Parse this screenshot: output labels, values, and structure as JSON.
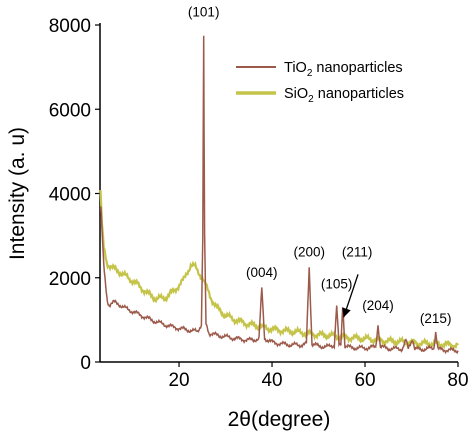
{
  "chart_data": {
    "type": "line",
    "xlabel_main": "2θ(degree)",
    "ylabel": "Intensity (a. u)",
    "xlim": [
      3,
      80
    ],
    "ylim": [
      0,
      8000
    ],
    "x_ticks": [
      20,
      40,
      60,
      80
    ],
    "y_ticks": [
      0,
      2000,
      4000,
      6000,
      8000
    ],
    "x_tick_labels": [
      "20",
      "40",
      "60",
      "80"
    ],
    "y_tick_labels": [
      "0",
      "2000",
      "4000",
      "6000",
      "8000"
    ],
    "grid": false,
    "legend_position": "top-right",
    "series": [
      {
        "name_main": "TiO",
        "name_sub": "2",
        "name_rest": " nanoparticles",
        "color": "#9c5a4b",
        "points": [
          [
            3.2,
            3700
          ],
          [
            3.5,
            3000
          ],
          [
            3.8,
            2300
          ],
          [
            4.2,
            1800
          ],
          [
            4.6,
            1450
          ],
          [
            5,
            1350
          ],
          [
            6,
            1420
          ],
          [
            7,
            1380
          ],
          [
            8,
            1300
          ],
          [
            10,
            1200
          ],
          [
            12,
            1100
          ],
          [
            14,
            1000
          ],
          [
            16,
            920
          ],
          [
            18,
            850
          ],
          [
            20,
            800
          ],
          [
            22,
            760
          ],
          [
            24,
            720
          ],
          [
            24.8,
            900
          ],
          [
            25.1,
            3000
          ],
          [
            25.3,
            7700
          ],
          [
            25.5,
            3000
          ],
          [
            25.8,
            900
          ],
          [
            26.5,
            680
          ],
          [
            28,
            640
          ],
          [
            30,
            600
          ],
          [
            32,
            560
          ],
          [
            34,
            530
          ],
          [
            36,
            520
          ],
          [
            37.2,
            560
          ],
          [
            37.8,
            1750
          ],
          [
            38.4,
            560
          ],
          [
            40,
            470
          ],
          [
            42,
            430
          ],
          [
            44,
            410
          ],
          [
            46,
            400
          ],
          [
            47.4,
            430
          ],
          [
            48.0,
            2250
          ],
          [
            48.6,
            430
          ],
          [
            50,
            380
          ],
          [
            52,
            360
          ],
          [
            53.4,
            400
          ],
          [
            53.9,
            1350
          ],
          [
            54.4,
            400
          ],
          [
            54.8,
            400
          ],
          [
            55.2,
            1350
          ],
          [
            55.7,
            380
          ],
          [
            57,
            340
          ],
          [
            60,
            330
          ],
          [
            62.3,
            360
          ],
          [
            62.8,
            900
          ],
          [
            63.3,
            360
          ],
          [
            65,
            320
          ],
          [
            68,
            310
          ],
          [
            68.8,
            520
          ],
          [
            69.3,
            310
          ],
          [
            70.2,
            560
          ],
          [
            70.7,
            310
          ],
          [
            72,
            300
          ],
          [
            74.8,
            330
          ],
          [
            75.2,
            720
          ],
          [
            75.7,
            300
          ],
          [
            78,
            280
          ],
          [
            80,
            270
          ]
        ]
      },
      {
        "name_main": "SiO",
        "name_sub": "2",
        "name_rest": " nanoparticles",
        "color": "#c5c44a",
        "points": [
          [
            3.1,
            4100
          ],
          [
            3.4,
            3300
          ],
          [
            3.8,
            2700
          ],
          [
            4.5,
            2350
          ],
          [
            5.5,
            2250
          ],
          [
            7,
            2150
          ],
          [
            9,
            2000
          ],
          [
            11,
            1850
          ],
          [
            13,
            1650
          ],
          [
            15,
            1500
          ],
          [
            17,
            1520
          ],
          [
            19,
            1700
          ],
          [
            21,
            1950
          ],
          [
            22.5,
            2300
          ],
          [
            23.5,
            2250
          ],
          [
            25,
            2000
          ],
          [
            26,
            1750
          ],
          [
            27,
            1500
          ],
          [
            28,
            1300
          ],
          [
            30,
            1100
          ],
          [
            32,
            1000
          ],
          [
            35,
            900
          ],
          [
            38,
            820
          ],
          [
            40,
            780
          ],
          [
            43,
            740
          ],
          [
            46,
            700
          ],
          [
            50,
            650
          ],
          [
            55,
            600
          ],
          [
            60,
            550
          ],
          [
            65,
            500
          ],
          [
            70,
            460
          ],
          [
            75,
            430
          ],
          [
            80,
            400
          ]
        ]
      }
    ],
    "annotations": [
      {
        "text": "(101)",
        "x": 25.3,
        "y": 8200
      },
      {
        "text": "(004)",
        "x": 37.8,
        "y": 2020
      },
      {
        "text": "(200)",
        "x": 48.0,
        "y": 2500
      },
      {
        "text": "(105)",
        "x": 53.9,
        "y": 1750
      },
      {
        "text": "(211)",
        "x": 58.3,
        "y": 2500
      },
      {
        "text": "(204)",
        "x": 62.8,
        "y": 1240
      },
      {
        "text": "(215)",
        "x": 75.2,
        "y": 920
      }
    ],
    "arrow": {
      "from": [
        58.5,
        2080
      ],
      "to": [
        55.4,
        1060
      ]
    }
  }
}
